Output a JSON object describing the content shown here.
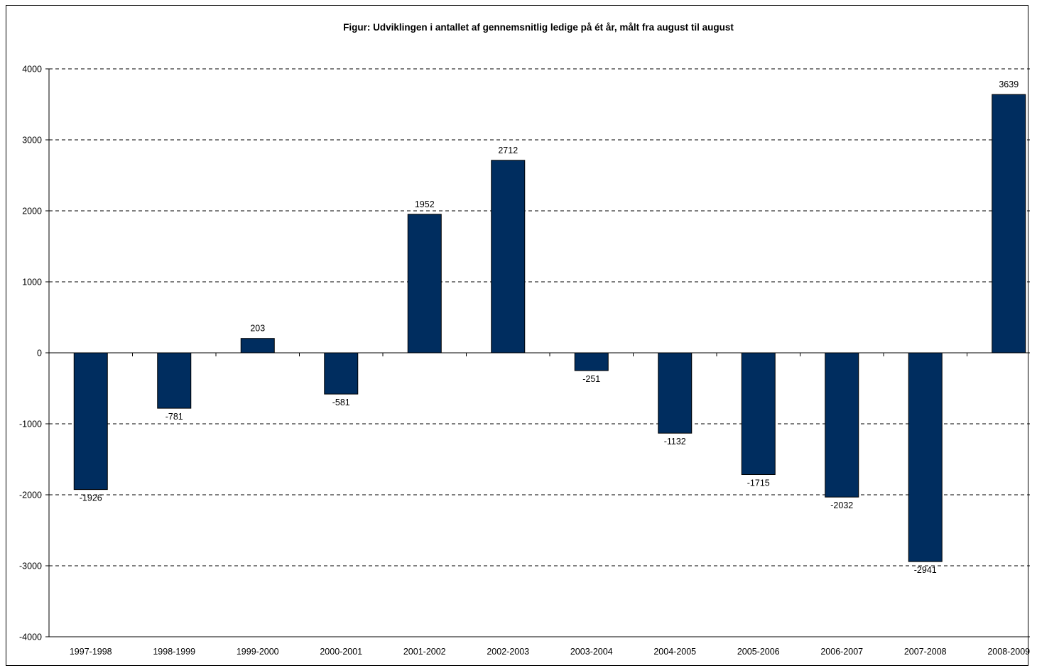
{
  "chart_data": {
    "type": "bar",
    "title": "Figur: Udviklingen i antallet af gennemsnitlig ledige på ét år, målt fra august til august",
    "xlabel": "",
    "ylabel": "",
    "categories": [
      "1997-1998",
      "1998-1999",
      "1999-2000",
      "2000-2001",
      "2001-2002",
      "2002-2003",
      "2003-2004",
      "2004-2005",
      "2005-2006",
      "2006-2007",
      "2007-2008",
      "2008-2009"
    ],
    "values": [
      -1926,
      -781,
      203,
      -581,
      1952,
      2712,
      -251,
      -1132,
      -1715,
      -2032,
      -2941,
      3639
    ],
    "data_labels": [
      "-1926",
      "-781",
      "203",
      "-581",
      "1952",
      "2712",
      "-251",
      "-1132",
      "-1715",
      "-2032",
      "-2941",
      "3639"
    ],
    "ylim": [
      -4000,
      4000
    ],
    "yticks": [
      "4000",
      "3000",
      "2000",
      "1000",
      "0",
      "-1000",
      "-2000",
      "-3000",
      "-4000"
    ],
    "grid": "dashed horizontal",
    "legend": "none",
    "bar_color": "#002D5F"
  }
}
